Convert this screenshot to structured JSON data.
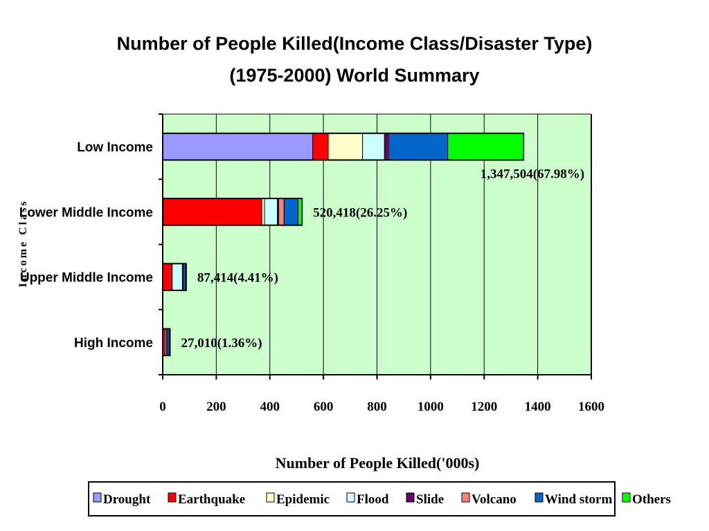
{
  "chart_data": {
    "type": "bar",
    "orientation": "horizontal",
    "stacked": true,
    "title_lines": [
      "Number of People Killed(Income Class/Disaster Type)",
      "(1975-2000) World Summary"
    ],
    "xlabel": "Number of People Killed('000s)",
    "ylabel": "Income Class",
    "xlim": [
      0,
      1600
    ],
    "x_ticks": [
      "0",
      "200",
      "400",
      "600",
      "800",
      "1000",
      "1200",
      "1400",
      "1600"
    ],
    "grid": "vertical",
    "legend_position": "bottom",
    "categories": [
      "Low Income",
      "Lower Middle Income",
      "Upper Middle Income",
      "High Income"
    ],
    "series": [
      {
        "name": "Drought",
        "color": "#9999ff",
        "values": [
          560,
          2,
          0.5,
          0.1
        ]
      },
      {
        "name": "Earthquake",
        "color": "#ff0000",
        "values": [
          58,
          368,
          33,
          9
        ]
      },
      {
        "name": "Epidemic",
        "color": "#ffffcc",
        "values": [
          128,
          10,
          2,
          0.5
        ]
      },
      {
        "name": "Flood",
        "color": "#ccffff",
        "values": [
          82,
          48,
          38,
          5
        ]
      },
      {
        "name": "Slide",
        "color": "#660066",
        "values": [
          12,
          5,
          2,
          1
        ]
      },
      {
        "name": "Volcano",
        "color": "#ff8080",
        "values": [
          4,
          20,
          1,
          0.5
        ]
      },
      {
        "name": "Wind storm",
        "color": "#0066cc",
        "values": [
          220,
          52,
          8,
          8
        ]
      },
      {
        "name": "Others",
        "color": "#00ff00",
        "values": [
          283,
          15,
          2.9,
          2.9
        ]
      }
    ],
    "data_labels": [
      "1,347,504(67.98%)",
      "520,418(26.25%)",
      "87,414(4.41%)",
      "27,010(1.36%)"
    ],
    "plot_background": "#ccffcc"
  }
}
